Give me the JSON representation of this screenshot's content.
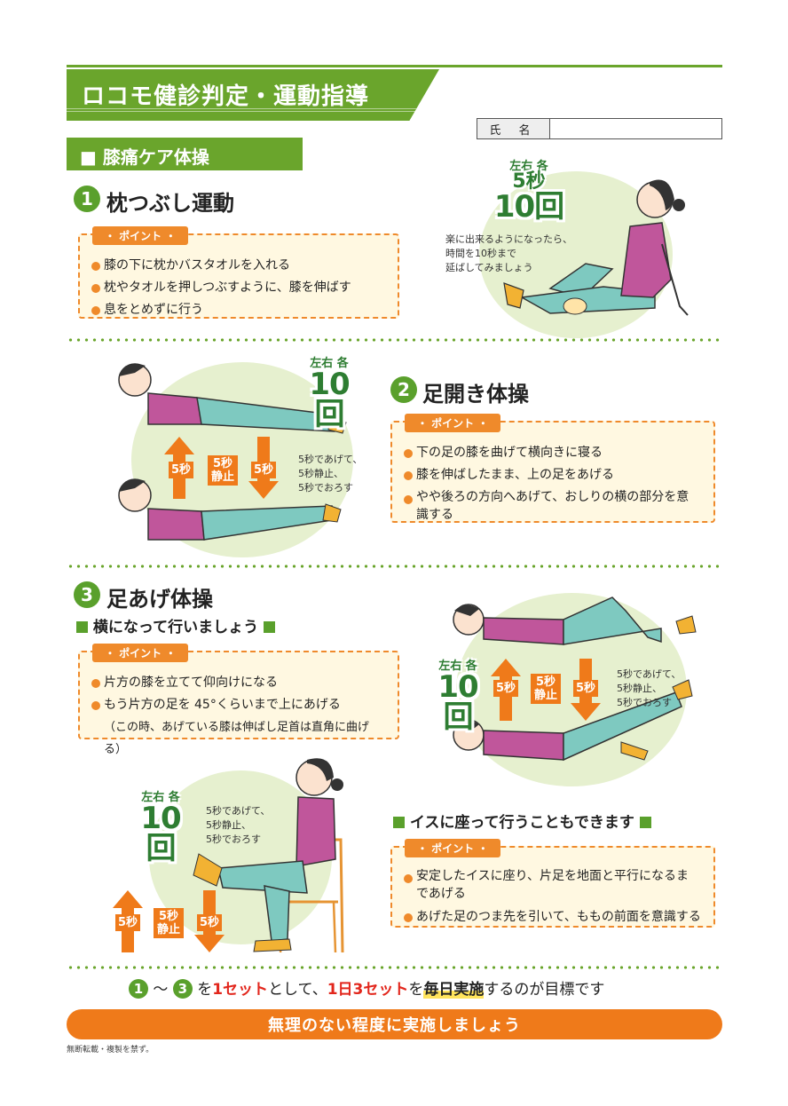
{
  "header": {
    "title": "ロコモ健診判定・運動指導",
    "name_label": "氏 名"
  },
  "section": {
    "title": "■ 膝痛ケア体操"
  },
  "point_label": "・ ポイント ・",
  "exercise1": {
    "number": "1",
    "title": "枕つぶし運動",
    "points": [
      "膝の下に枕かバスタオルを入れる",
      "枕やタオルを押しつぶすように、膝を伸ばす",
      "息をとめずに行う"
    ],
    "reps": {
      "label": "左右 各",
      "seconds": "5秒",
      "count": "10回"
    },
    "note": [
      "楽に出来るようになったら、",
      "時間を10秒まで",
      "延ばしてみましょう"
    ]
  },
  "exercise2": {
    "number": "2",
    "title": "足開き体操",
    "points": [
      "下の足の膝を曲げて横向きに寝る",
      "膝を伸ばしたまま、上の足をあげる",
      "やや後ろの方向へあげて、おしりの横の部分を意識する"
    ],
    "reps": {
      "label": "左右 各",
      "count": "10回"
    },
    "arrows": {
      "up": "5秒",
      "hold": "5秒静止",
      "down": "5秒"
    },
    "note": [
      "5秒であげて、",
      "5秒静止、",
      "5秒でおろす"
    ]
  },
  "exercise3": {
    "number": "3",
    "title": "足あげ体操",
    "subtitle": "横になって行いましょう",
    "points": [
      "片方の膝を立てて仰向けになる",
      "もう片方の足を 45°くらいまで上にあげる",
      "（この時、あげている膝は伸ばし足首は直角に曲げる）"
    ],
    "reps": {
      "label": "左右 各",
      "count": "10回"
    },
    "arrows": {
      "up": "5秒",
      "hold": "5秒静止",
      "down": "5秒"
    },
    "note": [
      "5秒であげて、",
      "5秒静止、",
      "5秒でおろす"
    ]
  },
  "exercise3_chair": {
    "subtitle": "イスに座って行うこともできます",
    "points": [
      "安定したイスに座り、片足を地面と平行になるまであげる",
      "あげた足のつま先を引いて、ももの前面を意識する"
    ],
    "reps": {
      "label": "左右 各",
      "count": "10回"
    },
    "arrows": {
      "up": "5秒",
      "hold": "5秒静止",
      "down": "5秒"
    },
    "note": [
      "5秒であげて、",
      "5秒静止、",
      "5秒でおろす"
    ]
  },
  "goal": {
    "n1": "1",
    "tilde": "〜",
    "n3": "3",
    "t1": "を",
    "set1": "1セット",
    "t2": "として、",
    "set3": "1日3セット",
    "t3": "を",
    "daily": "毎日実施",
    "t4": "するのが目標です"
  },
  "footer": {
    "banner": "無理のない程度に実施しましょう",
    "copyright": "無断転載・複製を禁ず。"
  },
  "colors": {
    "green": "#6aa52c",
    "orange": "#ef7a1a",
    "red": "#e2261c",
    "pink": "#c0569b",
    "teal": "#7ec9c0"
  }
}
